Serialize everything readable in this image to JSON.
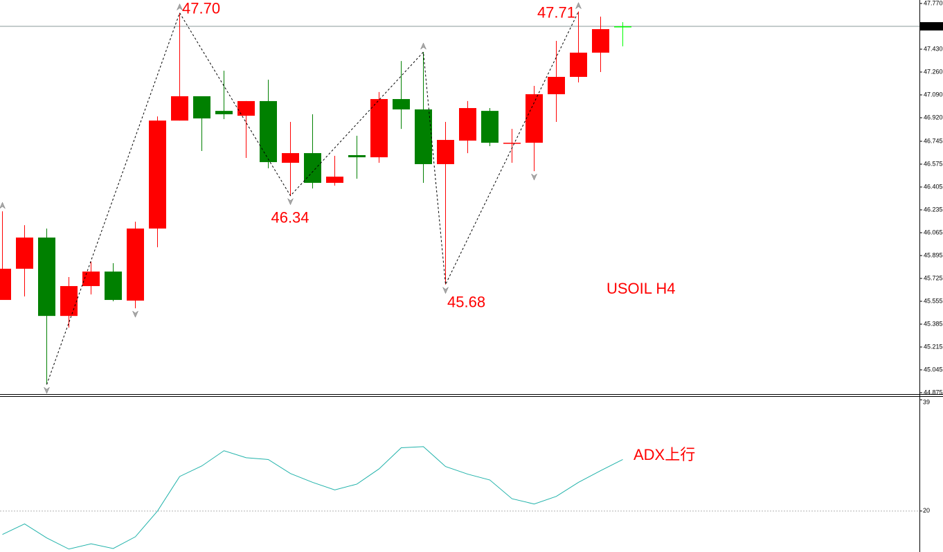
{
  "chart_data": [
    {
      "type": "candlestick",
      "title": "USOIL H4",
      "open": [
        45.565,
        45.797,
        46.029,
        45.446,
        45.668,
        45.776,
        45.56,
        46.096,
        46.899,
        47.08,
        46.971,
        46.935,
        47.044,
        46.585,
        46.657,
        46.436,
        46.642,
        46.626,
        47.059,
        46.982,
        46.575,
        46.75,
        46.971,
        46.734,
        46.734,
        47.095,
        47.224,
        47.404,
        47.6
      ],
      "high": [
        46.224,
        46.121,
        46.096,
        45.735,
        45.848,
        45.838,
        46.147,
        46.93,
        47.7,
        47.08,
        47.27,
        47.044,
        47.203,
        46.889,
        46.946,
        46.637,
        46.786,
        47.111,
        47.342,
        47.409,
        46.889,
        47.044,
        46.992,
        46.837,
        47.157,
        47.492,
        47.71,
        47.672,
        47.631
      ],
      "low": [
        45.565,
        45.591,
        44.936,
        45.359,
        45.606,
        45.555,
        45.503,
        45.957,
        46.899,
        46.673,
        46.91,
        46.621,
        46.544,
        46.34,
        46.394,
        46.415,
        46.467,
        46.585,
        46.837,
        46.436,
        45.68,
        46.657,
        46.709,
        46.585,
        46.523,
        46.889,
        47.183,
        47.26,
        47.451
      ],
      "close": [
        45.797,
        46.029,
        45.446,
        45.668,
        45.776,
        45.565,
        46.096,
        46.899,
        47.08,
        46.915,
        46.946,
        47.044,
        46.59,
        46.657,
        46.436,
        46.482,
        46.626,
        47.059,
        46.982,
        46.575,
        46.755,
        46.992,
        46.734,
        46.734,
        47.095,
        47.224,
        47.404,
        47.579,
        47.6
      ],
      "colors": [
        "#ff0000",
        "#ff0000",
        "#008000",
        "#ff0000",
        "#ff0000",
        "#008000",
        "#ff0000",
        "#ff0000",
        "#ff0000",
        "#008000",
        "#008000",
        "#ff0000",
        "#008000",
        "#ff0000",
        "#008000",
        "#ff0000",
        "#008000",
        "#ff0000",
        "#008000",
        "#008000",
        "#ff0000",
        "#ff0000",
        "#008000",
        "#ff0000",
        "#ff0000",
        "#ff0000",
        "#ff0000",
        "#ff0000",
        "#00ff00"
      ],
      "ylim": [
        44.875,
        47.77
      ],
      "yticks": [
        {
          "value": 47.77,
          "label": "47.770"
        },
        {
          "value": 47.43,
          "label": "47.430"
        },
        {
          "value": 47.26,
          "label": "47.260"
        },
        {
          "value": 47.09,
          "label": "47.090"
        },
        {
          "value": 46.92,
          "label": "46.920"
        },
        46.745,
        46.575,
        46.405,
        46.235,
        46.065,
        45.895,
        45.725,
        45.555,
        45.385,
        45.215,
        45.045,
        44.875
      ],
      "current_price": {
        "value": 47.6,
        "label": "47.60"
      },
      "zigzag": {
        "index": [
          2,
          8,
          13,
          19,
          20,
          26
        ],
        "values": [
          44.936,
          47.7,
          46.34,
          47.409,
          45.68,
          47.71
        ],
        "value_labels": [
          null,
          "47.70",
          "46.34",
          null,
          "45.68",
          "47.71"
        ]
      },
      "fractals_up": [
        0,
        8,
        19,
        26
      ],
      "fractals_down": [
        2,
        6,
        13,
        20,
        24
      ],
      "annotation_color": "#ff0000"
    },
    {
      "type": "line",
      "annotation": "ADX上行",
      "color": "#20b2aa",
      "values": [
        16.0,
        17.8,
        15.4,
        13.5,
        14.4,
        13.6,
        15.6,
        20.0,
        25.9,
        27.7,
        30.3,
        29.1,
        28.8,
        26.4,
        24.9,
        23.6,
        24.6,
        27.2,
        30.8,
        31.0,
        27.6,
        26.3,
        25.3,
        22.1,
        21.2,
        22.5,
        24.9,
        26.9,
        28.8
      ],
      "ylim": [
        13,
        39.5
      ],
      "yticks": [
        39,
        20
      ],
      "levels": [
        20
      ]
    }
  ]
}
